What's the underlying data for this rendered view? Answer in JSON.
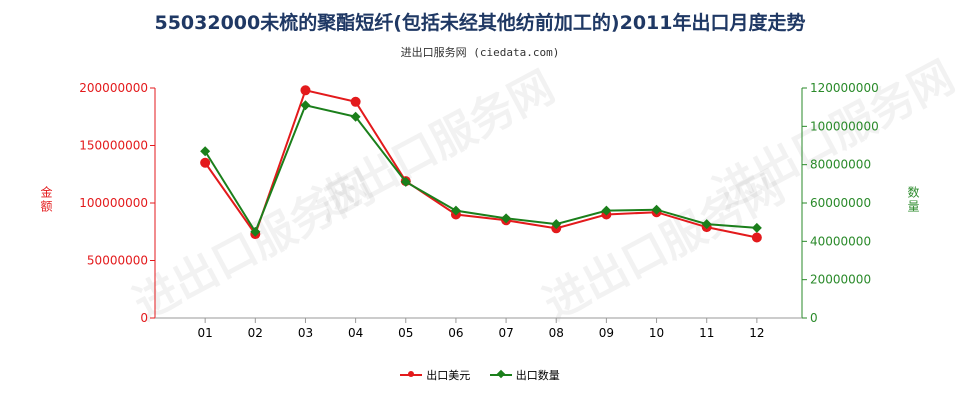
{
  "title": "55032000未梳的聚酯短纤(包括未经其他纺前加工的)2011年出口月度走势",
  "subtitle": "进出口服务网 (ciedata.com)",
  "watermark": "进出口服务网",
  "colors": {
    "red": "#e31a1c",
    "green": "#1b7f1b",
    "axis_left": "#e31a1c",
    "axis_right": "#2a8a2a"
  },
  "chart_data": {
    "type": "line",
    "categories": [
      "01",
      "02",
      "03",
      "04",
      "05",
      "06",
      "07",
      "08",
      "09",
      "10",
      "11",
      "12"
    ],
    "ylabel_left": "金额",
    "ylabel_right": "数量",
    "ylim_left": [
      0,
      200000000
    ],
    "ylim_right": [
      0,
      120000000
    ],
    "yticks_left": [
      "0",
      "50000000",
      "100000000",
      "150000000",
      "200000000"
    ],
    "yticks_right": [
      "0",
      "20000000",
      "40000000",
      "60000000",
      "80000000",
      "100000000",
      "120000000"
    ],
    "series": [
      {
        "name": "出口美元",
        "axis": "left",
        "color": "#e31a1c",
        "marker": "circle",
        "values": [
          135000000,
          73000000,
          198000000,
          188000000,
          119000000,
          90000000,
          85000000,
          78000000,
          90000000,
          92000000,
          79000000,
          70000000
        ]
      },
      {
        "name": "出口数量",
        "axis": "right",
        "color": "#1b7f1b",
        "marker": "diamond",
        "values": [
          87000000,
          45000000,
          111000000,
          105000000,
          71000000,
          56000000,
          52000000,
          49000000,
          56000000,
          56500000,
          49000000,
          47000000
        ]
      }
    ],
    "legend_position": "bottom-center",
    "grid": false
  }
}
